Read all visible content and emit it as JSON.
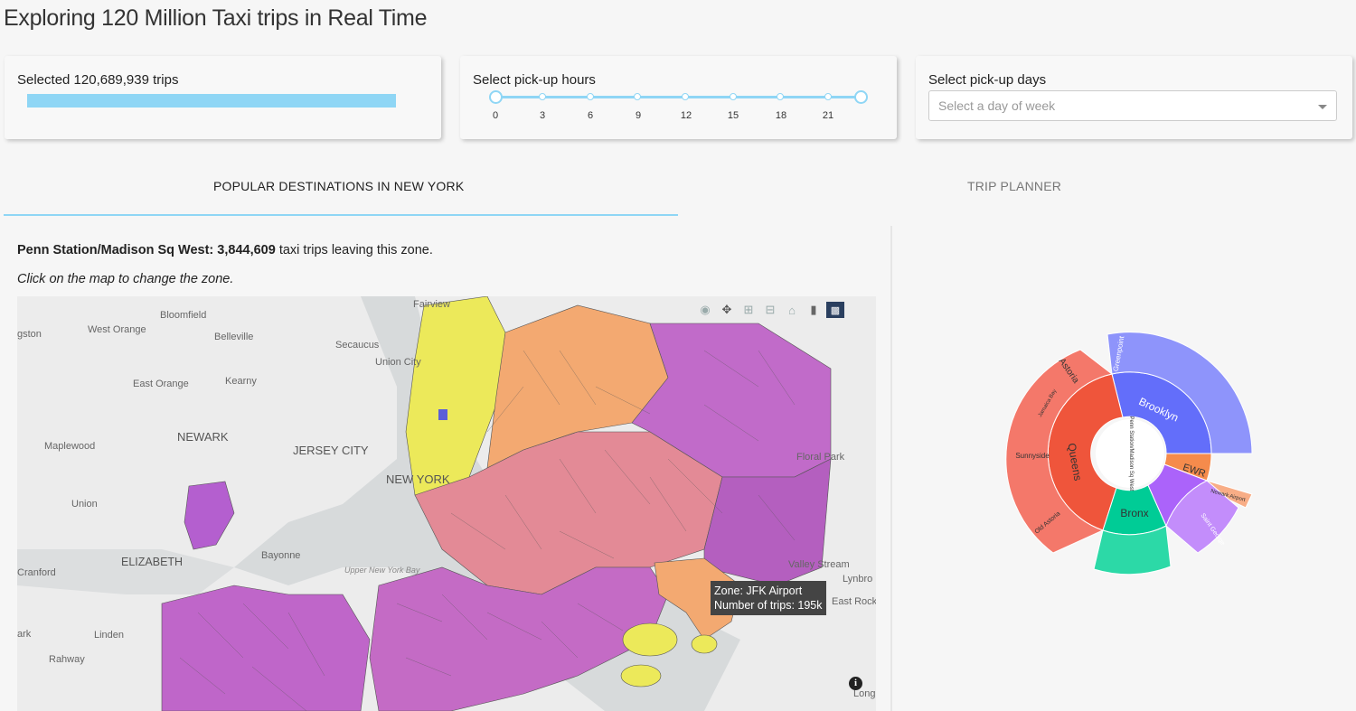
{
  "title": "Exploring 120 Million Taxi trips in Real Time",
  "selected": {
    "label": "Selected 120,689,939 trips",
    "fill_fraction": 1.0
  },
  "hours": {
    "label": "Select pick-up hours",
    "ticks": [
      "0",
      "3",
      "6",
      "9",
      "12",
      "15",
      "18",
      "21"
    ],
    "range": [
      0,
      24
    ]
  },
  "days": {
    "label": "Select pick-up days",
    "placeholder": "Select a day of week"
  },
  "tabs": [
    {
      "label": "POPULAR DESTINATIONS IN NEW YORK",
      "active": true
    },
    {
      "label": "TRIP PLANNER",
      "active": false
    }
  ],
  "zone": {
    "name": "Penn Station/Madison Sq West:",
    "trips": "3,844,609",
    "suffix": " taxi trips leaving this zone."
  },
  "hint": "Click on the map to change the zone.",
  "map": {
    "labels": [
      "Fairview",
      "Bloomfield",
      "West Orange",
      "gston",
      "Belleville",
      "Secaucus",
      "Union City",
      "East Orange",
      "Kearny",
      "NEWARK",
      "JERSEY CITY",
      "Maplewood",
      "NEW YORK",
      "Union",
      "ELIZABETH",
      "Bayonne",
      "Cranford",
      "Upper New York Bay",
      "ark",
      "Linden",
      "Rahway",
      "Floral Park",
      "Valley Stream",
      "Lynbro",
      "East Rock",
      "Long"
    ],
    "icons": [
      "camera-icon",
      "pan-icon",
      "zoom-in-icon",
      "zoom-out-icon",
      "home-icon",
      "tag-icon",
      "bar-chart-icon"
    ],
    "accent": "#2a3f5f"
  },
  "tooltip": {
    "line1": "Zone: JFK Airport",
    "line2": "Number of trips: 195k"
  },
  "sunburst": {
    "center": "Penn Station/Madison Sq West",
    "boroughs": [
      {
        "name": "Brooklyn",
        "color": "#636efa",
        "children": [
          "Greenpoint"
        ]
      },
      {
        "name": "Queens",
        "color": "#ef553b",
        "children": [
          "Astoria",
          "Jamaica Bay",
          "Sunnyside",
          "Old Astoria"
        ]
      },
      {
        "name": "Bronx",
        "color": "#00cc96",
        "children": []
      },
      {
        "name": "EWR",
        "color": "#f58b4c",
        "children": [
          "Newark Airport"
        ]
      },
      {
        "name": "Staten Island",
        "color": "#ab63fa",
        "children": [
          "Saint George"
        ]
      }
    ]
  },
  "colors": {
    "accent": "#8fd6f5",
    "text": "#222222"
  }
}
